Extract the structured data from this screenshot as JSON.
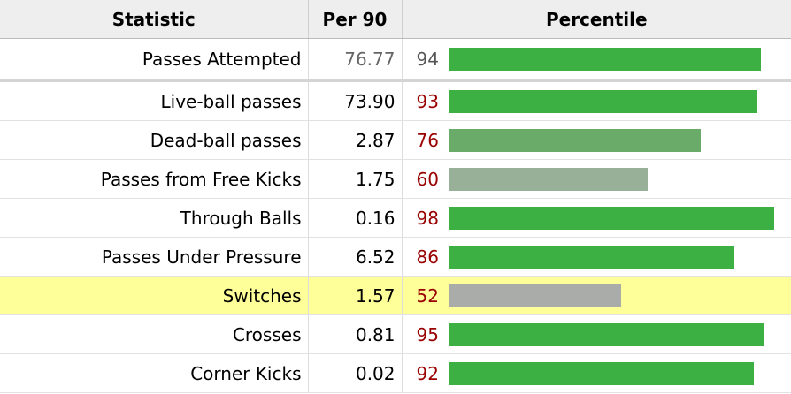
{
  "table": {
    "headers": {
      "statistic": "Statistic",
      "per90": "Per 90",
      "percentile": "Percentile"
    },
    "primary_row": {
      "statistic": "Passes Attempted",
      "per90": "76.77",
      "percentile": "94"
    },
    "rows": [
      {
        "statistic": "Live-ball passes",
        "per90": "73.90",
        "percentile": "93"
      },
      {
        "statistic": "Dead-ball passes",
        "per90": "2.87",
        "percentile": "76"
      },
      {
        "statistic": "Passes from Free Kicks",
        "per90": "1.75",
        "percentile": "60"
      },
      {
        "statistic": "Through Balls",
        "per90": "0.16",
        "percentile": "98"
      },
      {
        "statistic": "Passes Under Pressure",
        "per90": "6.52",
        "percentile": "86"
      },
      {
        "statistic": "Switches",
        "per90": "1.57",
        "percentile": "52"
      },
      {
        "statistic": "Crosses",
        "per90": "0.81",
        "percentile": "95"
      },
      {
        "statistic": "Corner Kicks",
        "per90": "0.02",
        "percentile": "92"
      }
    ]
  },
  "highlighted_row": "Switches",
  "colors": {
    "bar_high": "#3cb043",
    "bar_76": "#6aab6a",
    "bar_60": "#98b098",
    "bar_52": "#a9aca9",
    "highlight_row": "#ffff99",
    "percentile_text": "#990000"
  },
  "chart_data": {
    "type": "bar",
    "categories": [
      "Passes Attempted",
      "Live-ball passes",
      "Dead-ball passes",
      "Passes from Free Kicks",
      "Through Balls",
      "Passes Under Pressure",
      "Switches",
      "Crosses",
      "Corner Kicks"
    ],
    "values": [
      94,
      93,
      76,
      60,
      98,
      86,
      52,
      95,
      92
    ],
    "xlim": [
      0,
      100
    ],
    "orientation": "horizontal",
    "grid": false
  }
}
